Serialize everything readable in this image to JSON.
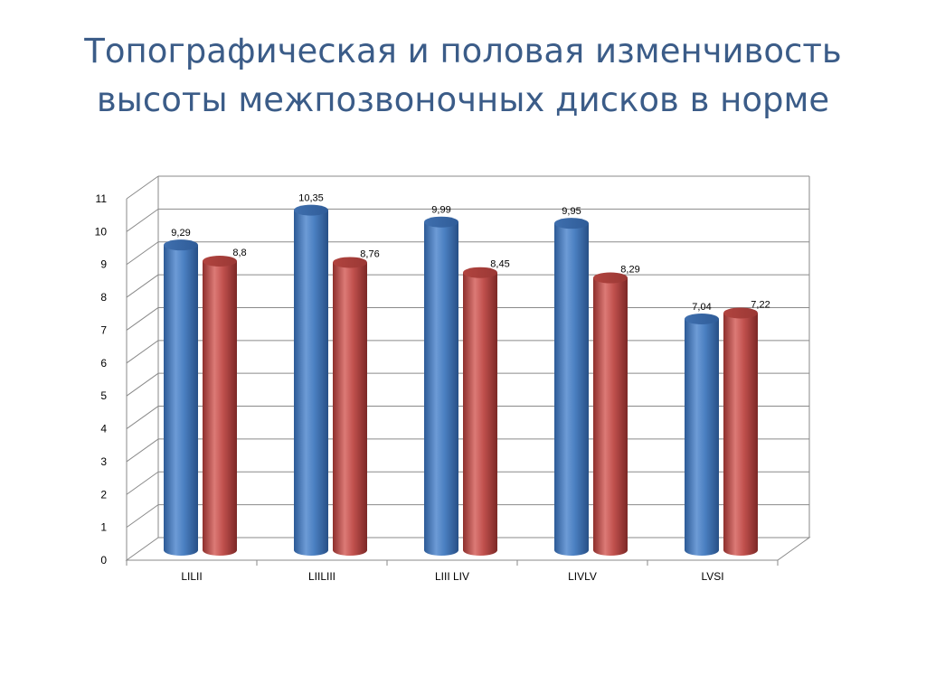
{
  "title_line1": "Топографическая и половая изменчивость",
  "title_line2": "высоты межпозвоночных дисков в норме",
  "chart_data": {
    "type": "bar",
    "categories": [
      "LILII",
      "LIILIII",
      "LIII LIV",
      "LIVLV",
      "LVSI"
    ],
    "series": [
      {
        "values": [
          9.29,
          10.35,
          9.99,
          9.95,
          7.04
        ],
        "labels": [
          "9,29",
          "10,35",
          "9,99",
          "9,95",
          "7,04"
        ]
      },
      {
        "values": [
          8.8,
          8.76,
          8.45,
          8.29,
          7.22
        ],
        "labels": [
          "8,8",
          "8,76",
          "8,45",
          "8,29",
          "7,22"
        ]
      }
    ],
    "colors": [
      "#4a7fc1",
      "#c0504d"
    ],
    "yticks": [
      "0",
      "1",
      "2",
      "3",
      "4",
      "5",
      "6",
      "7",
      "8",
      "9",
      "10",
      "11"
    ],
    "ylim": [
      0,
      11
    ],
    "grid": true,
    "style": "3d-cylinder"
  }
}
